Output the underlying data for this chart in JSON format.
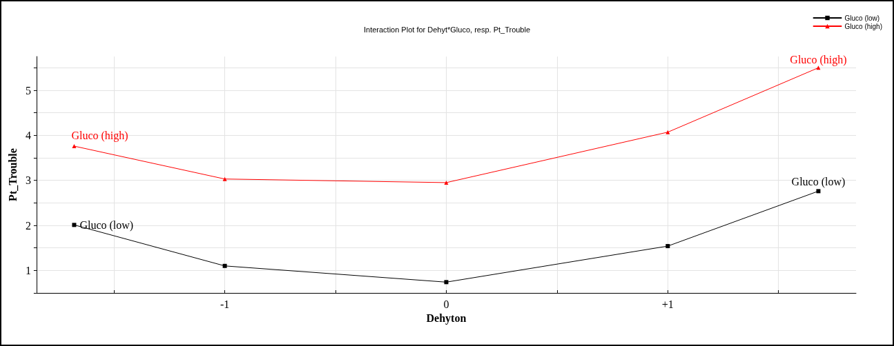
{
  "chart_data": {
    "type": "line",
    "title": "Interaction Plot for Dehyt*Gluco, resp. Pt_Trouble",
    "xlabel": "Dehyton",
    "ylabel": "Pt_Trouble",
    "x": [
      -1.68,
      -1,
      0,
      1,
      1.68
    ],
    "series": [
      {
        "name": "Gluco (low)",
        "color": "#000000",
        "marker": "square",
        "values": [
          2.01,
          1.1,
          0.74,
          1.54,
          2.76
        ]
      },
      {
        "name": "Gluco (high)",
        "color": "#ff0000",
        "marker": "triangle",
        "values": [
          3.76,
          3.03,
          2.95,
          4.07,
          5.5
        ]
      }
    ],
    "xlim": [
      -1.85,
      1.85
    ],
    "xticks": [
      {
        "value": -1.5,
        "label": null
      },
      {
        "value": -1,
        "label": "-1"
      },
      {
        "value": -0.5,
        "label": null
      },
      0,
      {
        "value": 0.5,
        "label": null
      },
      {
        "value": 1,
        "label": "+1"
      },
      {
        "value": 1.5,
        "label": null
      }
    ],
    "ylim": [
      0.5,
      5.75
    ],
    "yticks": [
      {
        "value": 0.5,
        "label": null
      },
      1,
      {
        "value": 1.5,
        "label": null
      },
      2,
      {
        "value": 2.5,
        "label": null
      },
      3,
      {
        "value": 3.5,
        "label": null
      },
      4,
      {
        "value": 4.5,
        "label": null
      },
      5,
      {
        "value": 5.5,
        "label": null
      }
    ],
    "grid": true,
    "legend": "top right",
    "line_style": "solid"
  }
}
